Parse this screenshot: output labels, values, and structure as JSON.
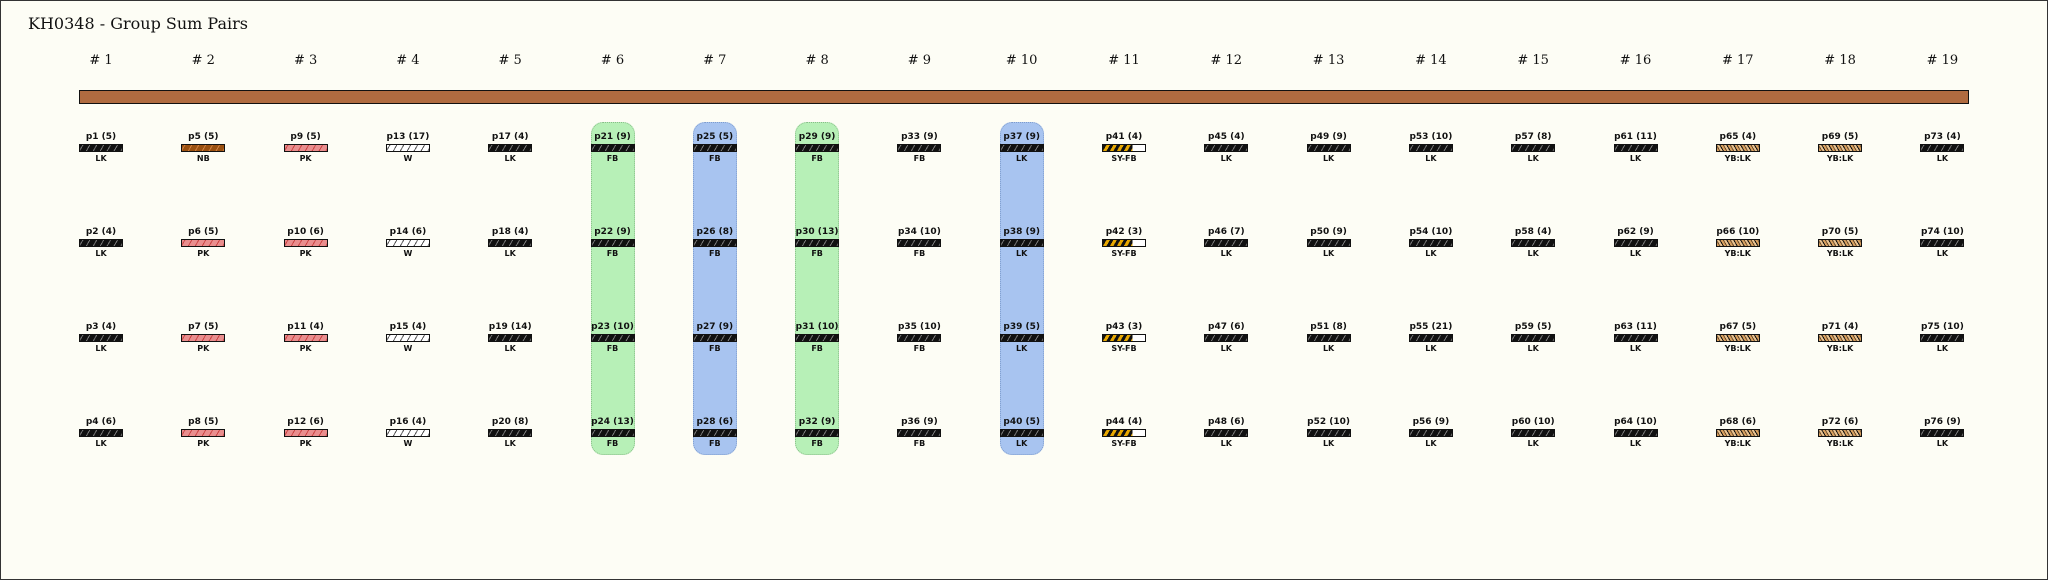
{
  "title": "KH0348 - Group Sum Pairs",
  "columns": [
    "# 1",
    "# 2",
    "# 3",
    "# 4",
    "# 5",
    "# 6",
    "# 7",
    "# 8",
    "# 9",
    "# 10",
    "# 11",
    "# 12",
    "# 13",
    "# 14",
    "# 15",
    "# 16",
    "# 17",
    "# 18",
    "# 19"
  ],
  "colors": {
    "bar": "#b06b40",
    "green_highlight": "#b7f0b7",
    "blue_highlight": "#a8c4f0"
  },
  "highlights": [
    {
      "column": 6,
      "color": "green"
    },
    {
      "column": 7,
      "color": "blue"
    },
    {
      "column": 8,
      "color": "green"
    },
    {
      "column": 10,
      "color": "blue"
    }
  ],
  "cells": [
    [
      {
        "name": "p1 (5)",
        "code": "LK",
        "pattern": "LK"
      },
      {
        "name": "p2 (4)",
        "code": "LK",
        "pattern": "LK"
      },
      {
        "name": "p3 (4)",
        "code": "LK",
        "pattern": "LK"
      },
      {
        "name": "p4 (6)",
        "code": "LK",
        "pattern": "LK"
      }
    ],
    [
      {
        "name": "p5 (5)",
        "code": "NB",
        "pattern": "NB"
      },
      {
        "name": "p6 (5)",
        "code": "PK",
        "pattern": "PK"
      },
      {
        "name": "p7 (5)",
        "code": "PK",
        "pattern": "PK"
      },
      {
        "name": "p8 (5)",
        "code": "PK",
        "pattern": "PK"
      }
    ],
    [
      {
        "name": "p9 (5)",
        "code": "PK",
        "pattern": "PK"
      },
      {
        "name": "p10 (6)",
        "code": "PK",
        "pattern": "PK"
      },
      {
        "name": "p11 (4)",
        "code": "PK",
        "pattern": "PK"
      },
      {
        "name": "p12 (6)",
        "code": "PK",
        "pattern": "PK"
      }
    ],
    [
      {
        "name": "p13 (17)",
        "code": "W",
        "pattern": "W"
      },
      {
        "name": "p14 (6)",
        "code": "W",
        "pattern": "W"
      },
      {
        "name": "p15 (4)",
        "code": "W",
        "pattern": "W"
      },
      {
        "name": "p16 (4)",
        "code": "W",
        "pattern": "W"
      }
    ],
    [
      {
        "name": "p17 (4)",
        "code": "LK",
        "pattern": "LK"
      },
      {
        "name": "p18 (4)",
        "code": "LK",
        "pattern": "LK"
      },
      {
        "name": "p19 (14)",
        "code": "LK",
        "pattern": "LK"
      },
      {
        "name": "p20 (8)",
        "code": "LK",
        "pattern": "LK"
      }
    ],
    [
      {
        "name": "p21 (9)",
        "code": "FB",
        "pattern": "FB"
      },
      {
        "name": "p22 (9)",
        "code": "FB",
        "pattern": "FB"
      },
      {
        "name": "p23 (10)",
        "code": "FB",
        "pattern": "FB"
      },
      {
        "name": "p24 (13)",
        "code": "FB",
        "pattern": "FB"
      }
    ],
    [
      {
        "name": "p25 (5)",
        "code": "FB",
        "pattern": "FB"
      },
      {
        "name": "p26 (8)",
        "code": "FB",
        "pattern": "FB"
      },
      {
        "name": "p27 (9)",
        "code": "FB",
        "pattern": "FB"
      },
      {
        "name": "p28 (6)",
        "code": "FB",
        "pattern": "FB"
      }
    ],
    [
      {
        "name": "p29 (9)",
        "code": "FB",
        "pattern": "FB"
      },
      {
        "name": "p30 (13)",
        "code": "FB",
        "pattern": "FB"
      },
      {
        "name": "p31 (10)",
        "code": "FB",
        "pattern": "FB"
      },
      {
        "name": "p32 (9)",
        "code": "FB",
        "pattern": "FB"
      }
    ],
    [
      {
        "name": "p33 (9)",
        "code": "FB",
        "pattern": "FB"
      },
      {
        "name": "p34 (10)",
        "code": "FB",
        "pattern": "FB"
      },
      {
        "name": "p35 (10)",
        "code": "FB",
        "pattern": "FB"
      },
      {
        "name": "p36 (9)",
        "code": "FB",
        "pattern": "FB"
      }
    ],
    [
      {
        "name": "p37 (9)",
        "code": "LK",
        "pattern": "LK"
      },
      {
        "name": "p38 (9)",
        "code": "LK",
        "pattern": "LK"
      },
      {
        "name": "p39 (5)",
        "code": "LK",
        "pattern": "LK"
      },
      {
        "name": "p40 (5)",
        "code": "LK",
        "pattern": "LK"
      }
    ],
    [
      {
        "name": "p41 (4)",
        "code": "SY-FB",
        "pattern": "SY"
      },
      {
        "name": "p42 (3)",
        "code": "SY-FB",
        "pattern": "SY"
      },
      {
        "name": "p43 (3)",
        "code": "SY-FB",
        "pattern": "SY"
      },
      {
        "name": "p44 (4)",
        "code": "SY-FB",
        "pattern": "SY"
      }
    ],
    [
      {
        "name": "p45 (4)",
        "code": "LK",
        "pattern": "LK"
      },
      {
        "name": "p46 (7)",
        "code": "LK",
        "pattern": "LK"
      },
      {
        "name": "p47 (6)",
        "code": "LK",
        "pattern": "LK"
      },
      {
        "name": "p48 (6)",
        "code": "LK",
        "pattern": "LK"
      }
    ],
    [
      {
        "name": "p49 (9)",
        "code": "LK",
        "pattern": "LK"
      },
      {
        "name": "p50 (9)",
        "code": "LK",
        "pattern": "LK"
      },
      {
        "name": "p51 (8)",
        "code": "LK",
        "pattern": "LK"
      },
      {
        "name": "p52 (10)",
        "code": "LK",
        "pattern": "LK"
      }
    ],
    [
      {
        "name": "p53 (10)",
        "code": "LK",
        "pattern": "LK"
      },
      {
        "name": "p54 (10)",
        "code": "LK",
        "pattern": "LK"
      },
      {
        "name": "p55 (21)",
        "code": "LK",
        "pattern": "LK"
      },
      {
        "name": "p56 (9)",
        "code": "LK",
        "pattern": "LK"
      }
    ],
    [
      {
        "name": "p57 (8)",
        "code": "LK",
        "pattern": "LK"
      },
      {
        "name": "p58 (4)",
        "code": "LK",
        "pattern": "LK"
      },
      {
        "name": "p59 (5)",
        "code": "LK",
        "pattern": "LK"
      },
      {
        "name": "p60 (10)",
        "code": "LK",
        "pattern": "LK"
      }
    ],
    [
      {
        "name": "p61 (11)",
        "code": "LK",
        "pattern": "LK"
      },
      {
        "name": "p62 (9)",
        "code": "LK",
        "pattern": "LK"
      },
      {
        "name": "p63 (11)",
        "code": "LK",
        "pattern": "LK"
      },
      {
        "name": "p64 (10)",
        "code": "LK",
        "pattern": "LK"
      }
    ],
    [
      {
        "name": "p65 (4)",
        "code": "YB:LK",
        "pattern": "YB"
      },
      {
        "name": "p66 (10)",
        "code": "YB:LK",
        "pattern": "YB"
      },
      {
        "name": "p67 (5)",
        "code": "YB:LK",
        "pattern": "YB"
      },
      {
        "name": "p68 (6)",
        "code": "YB:LK",
        "pattern": "YB"
      }
    ],
    [
      {
        "name": "p69 (5)",
        "code": "YB:LK",
        "pattern": "YB"
      },
      {
        "name": "p70 (5)",
        "code": "YB:LK",
        "pattern": "YB"
      },
      {
        "name": "p71 (4)",
        "code": "YB:LK",
        "pattern": "YB"
      },
      {
        "name": "p72 (6)",
        "code": "YB:LK",
        "pattern": "YB"
      }
    ],
    [
      {
        "name": "p73 (4)",
        "code": "LK",
        "pattern": "LK"
      },
      {
        "name": "p74 (10)",
        "code": "LK",
        "pattern": "LK"
      },
      {
        "name": "p75 (10)",
        "code": "LK",
        "pattern": "LK"
      },
      {
        "name": "p76 (9)",
        "code": "LK",
        "pattern": "LK"
      }
    ]
  ]
}
